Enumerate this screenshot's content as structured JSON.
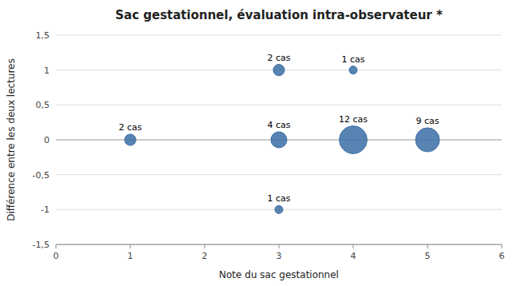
{
  "chart_data": {
    "type": "scatter",
    "title": "Sac gestationnel, évaluation intra-observateur *",
    "x_label": "Note du sac gestationnel",
    "y_label": "Différence entre les deux lectures",
    "x": [
      1,
      3,
      4,
      3,
      4,
      5,
      3
    ],
    "values": [
      0,
      1,
      1,
      0,
      0,
      0,
      -1
    ],
    "sizes": [
      2,
      2,
      1,
      4,
      12,
      9,
      1
    ],
    "annotations": [
      "2 cas",
      "2 cas",
      "1 cas",
      "4 cas",
      "12 cas",
      "9 cas",
      "1 cas"
    ],
    "color": "#3a6ea5",
    "xlim": [
      0,
      6
    ],
    "ylim": [
      -1.5,
      1.5
    ],
    "xticks": [
      0,
      1,
      2,
      3,
      4,
      5,
      6
    ],
    "yticks": [
      {
        "value": -1.5,
        "label": "-1,5"
      },
      -1,
      {
        "value": -0.5,
        "label": "-0,5"
      },
      0,
      {
        "value": 0.5,
        "label": "0,5"
      },
      1,
      {
        "value": 1.5,
        "label": "1,5"
      }
    ],
    "grid": "y"
  }
}
